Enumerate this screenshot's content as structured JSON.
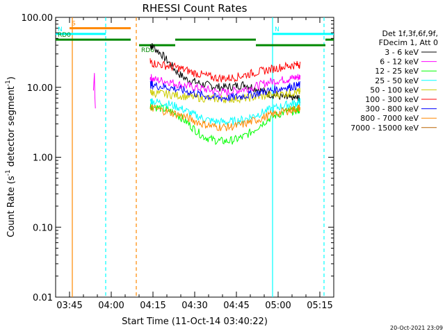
{
  "chart_data": {
    "type": "line",
    "title": "RHESSI Count Rates",
    "xlabel": "Start Time (11-Oct-14 03:40:22)",
    "ylabel_main": "Count Rate (s",
    "ylabel_sup": "-1",
    "ylabel_rest": " detector segment",
    "ylabel_sup2": "-1",
    "ylabel_end": ")",
    "ylog": true,
    "ylim": [
      0.01,
      100
    ],
    "xlim_minutes": [
      0,
      100
    ],
    "x_ticks": [
      {
        "label": "03:45",
        "minute": 5
      },
      {
        "label": "04:00",
        "minute": 20
      },
      {
        "label": "04:15",
        "minute": 35
      },
      {
        "label": "04:30",
        "minute": 50
      },
      {
        "label": "04:45",
        "minute": 65
      },
      {
        "label": "05:00",
        "minute": 80
      },
      {
        "label": "05:15",
        "minute": 95
      }
    ],
    "y_ticks": [
      {
        "label": "100.00",
        "value": 100
      },
      {
        "label": "10.00",
        "value": 10
      },
      {
        "label": "1.00",
        "value": 1
      },
      {
        "label": "0.10",
        "value": 0.1
      },
      {
        "label": "0.01",
        "value": 0.01
      }
    ],
    "legend_header": [
      "Det 1f,3f,6f,9f,",
      "FDecim 1, Att 0"
    ],
    "series": [
      {
        "name": "3 - 6 keV",
        "color": "#000000",
        "values": [
          null,
          null,
          null,
          null,
          40,
          38,
          30,
          22,
          16,
          13,
          12,
          11,
          10.5,
          10,
          10,
          10.5,
          11,
          10,
          9,
          8,
          7.5,
          7,
          7,
          7,
          6.5,
          null
        ]
      },
      {
        "name": "6 - 12 keV",
        "color": "#ff00ff",
        "values": [
          null,
          null,
          null,
          null,
          14,
          13,
          12.5,
          12,
          11,
          10.5,
          10,
          9.5,
          9,
          8.5,
          8.5,
          9,
          9.5,
          10,
          11,
          12,
          12.5,
          13,
          13.5,
          14,
          14,
          null
        ]
      },
      {
        "name": "12 - 25 keV",
        "color": "#00ff00",
        "values": [
          null,
          null,
          null,
          null,
          5.5,
          5.3,
          5,
          4.6,
          4,
          3.2,
          2.5,
          2,
          1.8,
          1.7,
          1.7,
          1.8,
          2,
          2.4,
          3,
          3.6,
          4.1,
          4.5,
          4.6,
          4.7,
          4.8,
          null
        ]
      },
      {
        "name": "25 - 50 keV",
        "color": "#00ffff",
        "values": [
          null,
          null,
          null,
          null,
          6.5,
          6.3,
          6,
          5.7,
          5.2,
          4.6,
          4,
          3.6,
          3.3,
          3.2,
          3.2,
          3.3,
          3.5,
          3.9,
          4.3,
          4.8,
          5.2,
          5.6,
          5.8,
          6,
          6.2,
          null
        ]
      },
      {
        "name": "50 - 100 keV",
        "color": "#cccc00",
        "values": [
          null,
          null,
          null,
          null,
          8.5,
          8.3,
          8.1,
          7.9,
          7.7,
          7.4,
          7.2,
          7,
          6.9,
          6.8,
          6.8,
          6.9,
          7,
          7.2,
          7.4,
          7.7,
          8,
          8.2,
          8.4,
          8.5,
          8.6,
          null
        ]
      },
      {
        "name": "100 - 300 keV",
        "color": "#ff0000",
        "values": [
          null,
          null,
          null,
          null,
          23,
          22,
          21,
          20,
          19,
          17.5,
          16,
          15,
          14,
          13.5,
          13.5,
          14,
          15,
          16,
          17,
          18,
          19,
          20,
          20.5,
          21,
          21.5,
          null
        ]
      },
      {
        "name": "300 - 800 keV",
        "color": "#0000ff",
        "values": [
          null,
          null,
          null,
          null,
          11,
          10.7,
          10.3,
          9.9,
          9.4,
          8.8,
          8.2,
          7.7,
          7.3,
          7.1,
          7.1,
          7.3,
          7.6,
          8,
          8.5,
          9,
          9.5,
          10,
          10.3,
          10.5,
          10.7,
          null
        ]
      },
      {
        "name": "800 - 7000 keV",
        "color": "#ff8800",
        "values": [
          null,
          null,
          null,
          null,
          5.3,
          5,
          4.7,
          4.4,
          4.1,
          3.7,
          3.3,
          3,
          2.8,
          2.7,
          2.7,
          2.8,
          3,
          3.3,
          3.6,
          4,
          4.3,
          4.6,
          4.8,
          5,
          5.1,
          null
        ]
      },
      {
        "name": "7000 - 15000 keV",
        "color": "#b86400",
        "values": [
          null,
          null,
          null,
          null,
          null,
          null,
          null,
          null,
          null,
          null,
          null,
          null,
          null,
          null,
          null,
          null,
          null,
          null,
          null,
          null,
          null,
          null,
          null,
          null,
          null,
          null
        ]
      }
    ],
    "x_minutes": [
      30,
      31,
      32,
      33,
      34,
      35,
      38,
      41,
      44,
      47,
      50,
      53,
      56,
      59,
      62,
      65,
      68,
      71,
      74,
      77,
      80,
      83,
      85,
      87,
      88,
      89
    ],
    "burst_blip": {
      "minute_range": [
        13.6,
        14.3
      ],
      "values": [
        9,
        12,
        16,
        7,
        5
      ]
    },
    "flags": [
      {
        "label": "S",
        "color": "#ff8800",
        "start_minute": 5,
        "end_minute": 27,
        "value": 70
      },
      {
        "label": "N",
        "color": "#00ffff",
        "start_minute": 0,
        "end_minute": 18,
        "value": 58
      },
      {
        "label": "N",
        "color": "#00ffff",
        "start_minute": 78,
        "end_minute": 100,
        "value": 58
      },
      {
        "label": "RD0",
        "color": "#008800",
        "start_minute": 0,
        "end_minute": 27,
        "value": 48
      },
      {
        "label": "RD6",
        "color": "#008800",
        "start_minute": 30,
        "end_minute": 43,
        "value": 40
      },
      {
        "label": "",
        "color": "#008800",
        "start_minute": 43,
        "end_minute": 72,
        "value": 48
      },
      {
        "label": "",
        "color": "#008800",
        "start_minute": 72,
        "end_minute": 97,
        "value": 40
      },
      {
        "label": "",
        "color": "#008800",
        "start_minute": 97,
        "end_minute": 100,
        "value": 48
      }
    ],
    "vertical_lines": [
      {
        "minute": 6,
        "color": "#ff8800",
        "style": "solid"
      },
      {
        "minute": 18,
        "color": "#00ffff",
        "style": "dashed"
      },
      {
        "minute": 29,
        "color": "#ff8800",
        "style": "dashed"
      },
      {
        "minute": 78,
        "color": "#00ffff",
        "style": "solid"
      },
      {
        "minute": 96.5,
        "color": "#00ffff",
        "style": "dashed"
      }
    ],
    "footer_stamp": "20-Oct-2021 23:09"
  }
}
